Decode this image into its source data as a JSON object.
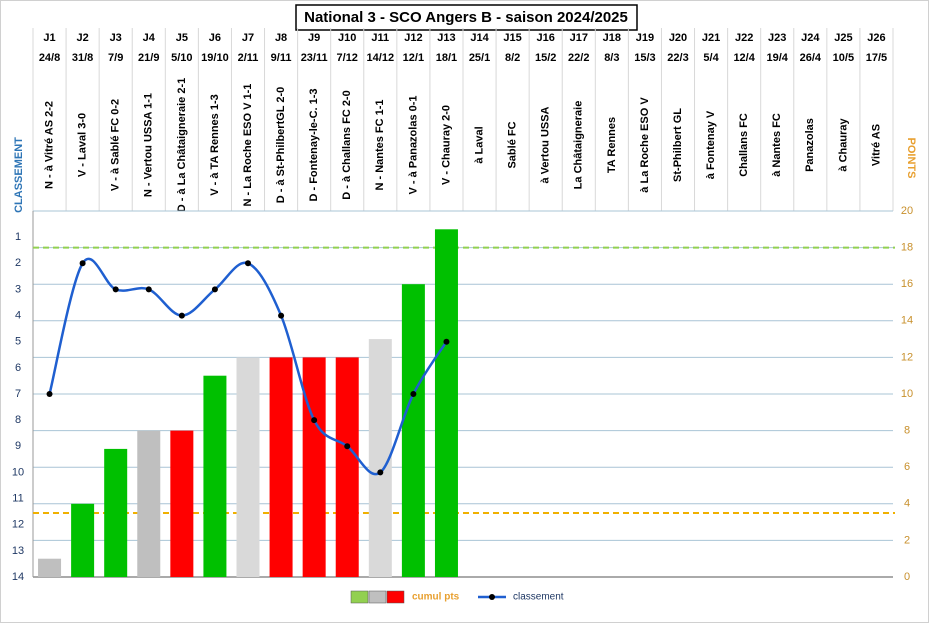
{
  "chart_data": {
    "type": "bar",
    "title": "National 3 - SCO Angers B - saison 2024/2025",
    "y_label": "CLASSEMENT",
    "y2_label": "POINTS",
    "categories": [
      "J1",
      "J2",
      "J3",
      "J4",
      "J5",
      "J6",
      "J7",
      "J8",
      "J9",
      "J10",
      "J11",
      "J12",
      "J13",
      "J14",
      "J15",
      "J16",
      "J17",
      "J18",
      "J19",
      "J20",
      "J21",
      "J22",
      "J23",
      "J24",
      "J25",
      "J26"
    ],
    "dates": [
      "24/8",
      "31/8",
      "7/9",
      "21/9",
      "5/10",
      "19/10",
      "2/11",
      "9/11",
      "23/11",
      "7/12",
      "14/12",
      "12/1",
      "18/1",
      "25/1",
      "8/2",
      "15/2",
      "22/2",
      "8/3",
      "15/3",
      "22/3",
      "5/4",
      "12/4",
      "19/4",
      "26/4",
      "10/5",
      "17/5"
    ],
    "matches": [
      "N - à Vitré AS 2-2",
      "V - Laval 3-0",
      "V - à Sablé FC 0-2",
      "N - Vertou USSA 1-1",
      "D - à La Châtaigneraie 2-1",
      "V - à TA Rennes 1-3",
      "N - La Roche ESO V 1-1",
      "D - à St-PhilbertGL 2-0",
      "D - Fontenay-le-C. 1-3",
      "D - à Challans FC 2-0",
      "N - Nantes FC 1-1",
      "V - à Panazolas 0-1",
      "V - Chauray 2-0",
      "à Laval",
      "Sablé FC",
      "à Vertou USSA",
      "La Châtaigneraie",
      "TA Rennes",
      "à La Roche ESO V",
      "St-Philbert GL",
      "à Fontenay V",
      "Challans FC",
      "à Nantes FC",
      "Panazolas",
      "à Chauray",
      "Vitré AS"
    ],
    "ylim": [
      0,
      14
    ],
    "y_reversed": true,
    "yticks": [
      1,
      2,
      3,
      4,
      5,
      6,
      7,
      8,
      9,
      10,
      11,
      12,
      13,
      14
    ],
    "y2lim": [
      0,
      20
    ],
    "y2ticks": [
      0,
      2,
      4,
      6,
      8,
      10,
      12,
      14,
      16,
      18,
      20
    ],
    "grid": true,
    "series": [
      {
        "name": "cumul pts",
        "type": "bar",
        "axis": "y2",
        "values": [
          1,
          4,
          7,
          8,
          8,
          11,
          12,
          12,
          12,
          12,
          13,
          16,
          19,
          null,
          null,
          null,
          null,
          null,
          null,
          null,
          null,
          null,
          null,
          null,
          null,
          null
        ],
        "colors": [
          "#bfbfbf",
          "#00c000",
          "#00c000",
          "#bfbfbf",
          "#ff0000",
          "#00c000",
          "#d9d9d9",
          "#ff0000",
          "#ff0000",
          "#ff0000",
          "#d9d9d9",
          "#00c000",
          "#00c000",
          null,
          null,
          null,
          null,
          null,
          null,
          null,
          null,
          null,
          null,
          null,
          null,
          null
        ],
        "legend_colors": [
          "#92d050",
          "#bfbfbf",
          "#ff0000"
        ]
      },
      {
        "name": "classement",
        "type": "line",
        "axis": "y",
        "color": "#1f5fd0",
        "values": [
          7,
          2,
          3,
          3,
          4,
          3,
          2,
          4,
          8,
          9,
          10,
          7,
          5,
          null,
          null,
          null,
          null,
          null,
          null,
          null,
          null,
          null,
          null,
          null,
          null,
          null
        ]
      }
    ],
    "reference_lines": [
      {
        "axis": "y2",
        "value": 18,
        "color": "#92d050"
      },
      {
        "axis": "y2",
        "value": 3.5,
        "color": "#f0b000"
      }
    ]
  }
}
